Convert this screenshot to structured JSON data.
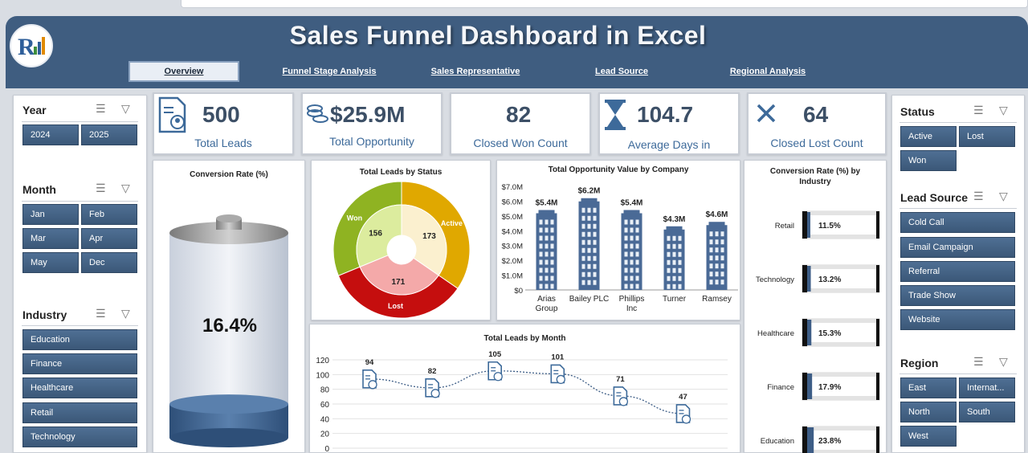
{
  "header": {
    "title": "Sales Funnel Dashboard in Excel",
    "tabs": [
      {
        "label": "Overview",
        "active": true
      },
      {
        "label": "Funnel Stage Analysis",
        "active": false
      },
      {
        "label": "Sales Representative",
        "active": false
      },
      {
        "label": "Lead Source",
        "active": false
      },
      {
        "label": "Regional Analysis",
        "active": false
      }
    ]
  },
  "slicers": {
    "year": {
      "title": "Year",
      "items": [
        "2024",
        "2025"
      ]
    },
    "month": {
      "title": "Month",
      "items": [
        "Jan",
        "Feb",
        "Mar",
        "Apr",
        "May",
        "Dec"
      ]
    },
    "industry": {
      "title": "Industry",
      "items": [
        "Education",
        "Finance",
        "Healthcare",
        "Retail",
        "Technology"
      ]
    },
    "status": {
      "title": "Status",
      "items": [
        "Active",
        "Lost",
        "Won"
      ]
    },
    "lead_source": {
      "title": "Lead Source",
      "items": [
        "Cold Call",
        "Email Campaign",
        "Referral",
        "Trade Show",
        "Website"
      ]
    },
    "region": {
      "title": "Region",
      "items": [
        "East",
        "Internat...",
        "North",
        "South",
        "West"
      ]
    }
  },
  "kpis": [
    {
      "value": "500",
      "label": "Total Leads",
      "icon": "document-user-icon"
    },
    {
      "value": "$25.9M",
      "label": "Total Opportunity",
      "icon": "coins-icon"
    },
    {
      "value": "82",
      "label": "Closed Won Count",
      "icon": "none"
    },
    {
      "value": "104.7",
      "label": "Average Days in",
      "icon": "hourglass-icon"
    },
    {
      "value": "64",
      "label": "Closed Lost Count",
      "icon": "close-icon"
    }
  ],
  "conversion": {
    "title": "Conversion Rate (%)",
    "value": "16.4%",
    "fill_fraction": 0.164
  },
  "charts": {
    "status": {
      "title": "Total Leads by Status",
      "outer": [
        {
          "label": "Won",
          "color": "#8fb322"
        },
        {
          "label": "Active",
          "color": "#e0a800"
        },
        {
          "label": "Lost",
          "color": "#c50e0e"
        }
      ],
      "inner": [
        {
          "value": "156",
          "color": "#dcec9e"
        },
        {
          "value": "173",
          "color": "#fbf0cf"
        },
        {
          "value": "171",
          "color": "#f4a9a9"
        }
      ]
    },
    "company": {
      "title": "Total Opportunity Value by Company",
      "yticks": [
        "$7.0M",
        "$6.0M",
        "$5.0M",
        "$4.0M",
        "$3.0M",
        "$2.0M",
        "$1.0M",
        "$0"
      ],
      "bars": [
        {
          "category": "Arias Group",
          "value": 5.4,
          "label": "$5.4M"
        },
        {
          "category": "Bailey PLC",
          "value": 6.2,
          "label": "$6.2M"
        },
        {
          "category": "Phillips Inc",
          "value": 5.4,
          "label": "$5.4M"
        },
        {
          "category": "Turner",
          "value": 4.3,
          "label": "$4.3M"
        },
        {
          "category": "Ramsey",
          "value": 4.6,
          "label": "$4.6M"
        }
      ],
      "ymax": 7
    },
    "month": {
      "title": "Total Leads by Month",
      "yticks": [
        "120",
        "100",
        "80",
        "60",
        "40",
        "20",
        "0"
      ],
      "ymax": 120,
      "points": [
        {
          "value": 94,
          "label": "94"
        },
        {
          "value": 82,
          "label": "82"
        },
        {
          "value": 105,
          "label": "105"
        },
        {
          "value": 101,
          "label": "101"
        },
        {
          "value": 71,
          "label": "71"
        },
        {
          "value": 47,
          "label": "47"
        }
      ]
    },
    "industry": {
      "title": "Conversion Rate (%) by Industry",
      "rows": [
        {
          "label": "Retail",
          "value": "11.5%",
          "fraction": 0.115
        },
        {
          "label": "Technology",
          "value": "13.2%",
          "fraction": 0.132
        },
        {
          "label": "Healthcare",
          "value": "15.3%",
          "fraction": 0.153
        },
        {
          "label": "Finance",
          "value": "17.9%",
          "fraction": 0.179
        },
        {
          "label": "Education",
          "value": "23.8%",
          "fraction": 0.238
        }
      ]
    }
  },
  "chart_data": [
    {
      "type": "pie",
      "title": "Total Leads by Status",
      "categories": [
        "Won",
        "Active",
        "Lost"
      ],
      "values": [
        156,
        173,
        171
      ]
    },
    {
      "type": "bar",
      "title": "Total Opportunity Value by Company",
      "categories": [
        "Arias Group",
        "Bailey PLC",
        "Phillips Inc",
        "Turner",
        "Ramsey"
      ],
      "values": [
        5.4,
        6.2,
        5.4,
        4.3,
        4.6
      ],
      "ylim": [
        0,
        7
      ]
    },
    {
      "type": "line",
      "title": "Total Leads by Month",
      "values": [
        94,
        82,
        105,
        101,
        71,
        47
      ],
      "ylim": [
        0,
        120
      ]
    },
    {
      "type": "bar",
      "title": "Conversion Rate (%) by Industry",
      "categories": [
        "Retail",
        "Technology",
        "Healthcare",
        "Finance",
        "Education"
      ],
      "values": [
        11.5,
        13.2,
        15.3,
        17.9,
        23.8
      ]
    }
  ],
  "colors": {
    "header": "#3f5d80",
    "button": "#3b5878",
    "accent": "#3d6a9a"
  }
}
